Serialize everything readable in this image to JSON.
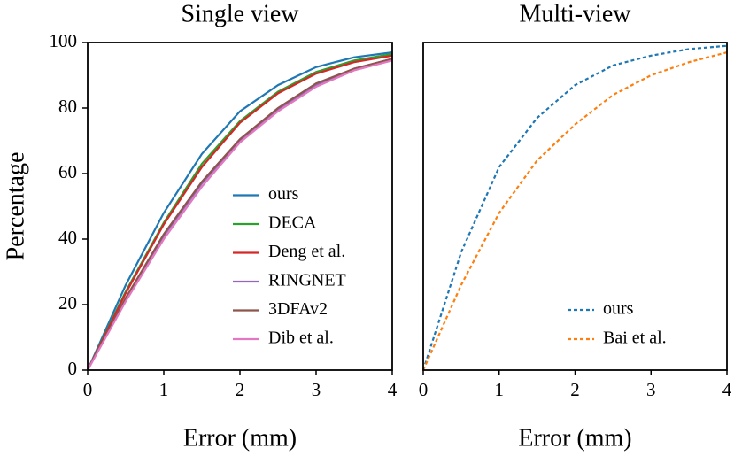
{
  "chart_data": [
    {
      "type": "line",
      "title": "Single view",
      "xlabel": "Error (mm)",
      "ylabel": "Percentage",
      "x": [
        0,
        0.5,
        1,
        1.5,
        2,
        2.5,
        3,
        3.5,
        4
      ],
      "xlim": [
        0,
        4
      ],
      "xticks": [
        0,
        1,
        2,
        3,
        4
      ],
      "ylim": [
        0,
        100
      ],
      "yticks": [
        0,
        20,
        40,
        60,
        80,
        100
      ],
      "legend": "lower right",
      "linestyle": "solid",
      "series": [
        {
          "name": "ours",
          "color": "#1f77b4",
          "values": [
            0,
            26,
            48,
            66,
            79,
            87,
            92.5,
            95.5,
            97
          ]
        },
        {
          "name": "DECA",
          "color": "#2ca02c",
          "values": [
            0,
            24,
            45,
            63,
            76,
            85,
            91,
            94.5,
            96.5
          ]
        },
        {
          "name": "Deng et al.",
          "color": "#d62728",
          "values": [
            0,
            23.5,
            44.5,
            62,
            75.5,
            84.5,
            90.5,
            94,
            96
          ]
        },
        {
          "name": "RINGNET",
          "color": "#9467bd",
          "values": [
            0,
            22,
            41,
            57,
            70,
            79.5,
            87,
            92,
            95
          ]
        },
        {
          "name": "3DFAv2",
          "color": "#8c564b",
          "values": [
            0,
            22,
            41.5,
            57.5,
            70.5,
            80,
            87.5,
            92,
            95
          ]
        },
        {
          "name": "Dib et al.",
          "color": "#e377c2",
          "values": [
            0,
            21,
            40,
            56,
            69.5,
            79,
            86.5,
            91.5,
            94.5
          ]
        }
      ]
    },
    {
      "type": "line",
      "title": "Multi-view",
      "xlabel": "Error (mm)",
      "x": [
        0,
        0.5,
        1,
        1.5,
        2,
        2.5,
        3,
        3.5,
        4
      ],
      "xlim": [
        0,
        4
      ],
      "xticks": [
        0,
        1,
        2,
        3,
        4
      ],
      "ylim": [
        0,
        100
      ],
      "legend": "lower right",
      "linestyle": "dashed",
      "series": [
        {
          "name": "ours",
          "color": "#1f77b4",
          "values": [
            0,
            36,
            62,
            77,
            87,
            93,
            96,
            98,
            99
          ]
        },
        {
          "name": "Bai et al.",
          "color": "#ff7f0e",
          "values": [
            0,
            26,
            48,
            64,
            75,
            84,
            90,
            94,
            97
          ]
        }
      ]
    }
  ]
}
